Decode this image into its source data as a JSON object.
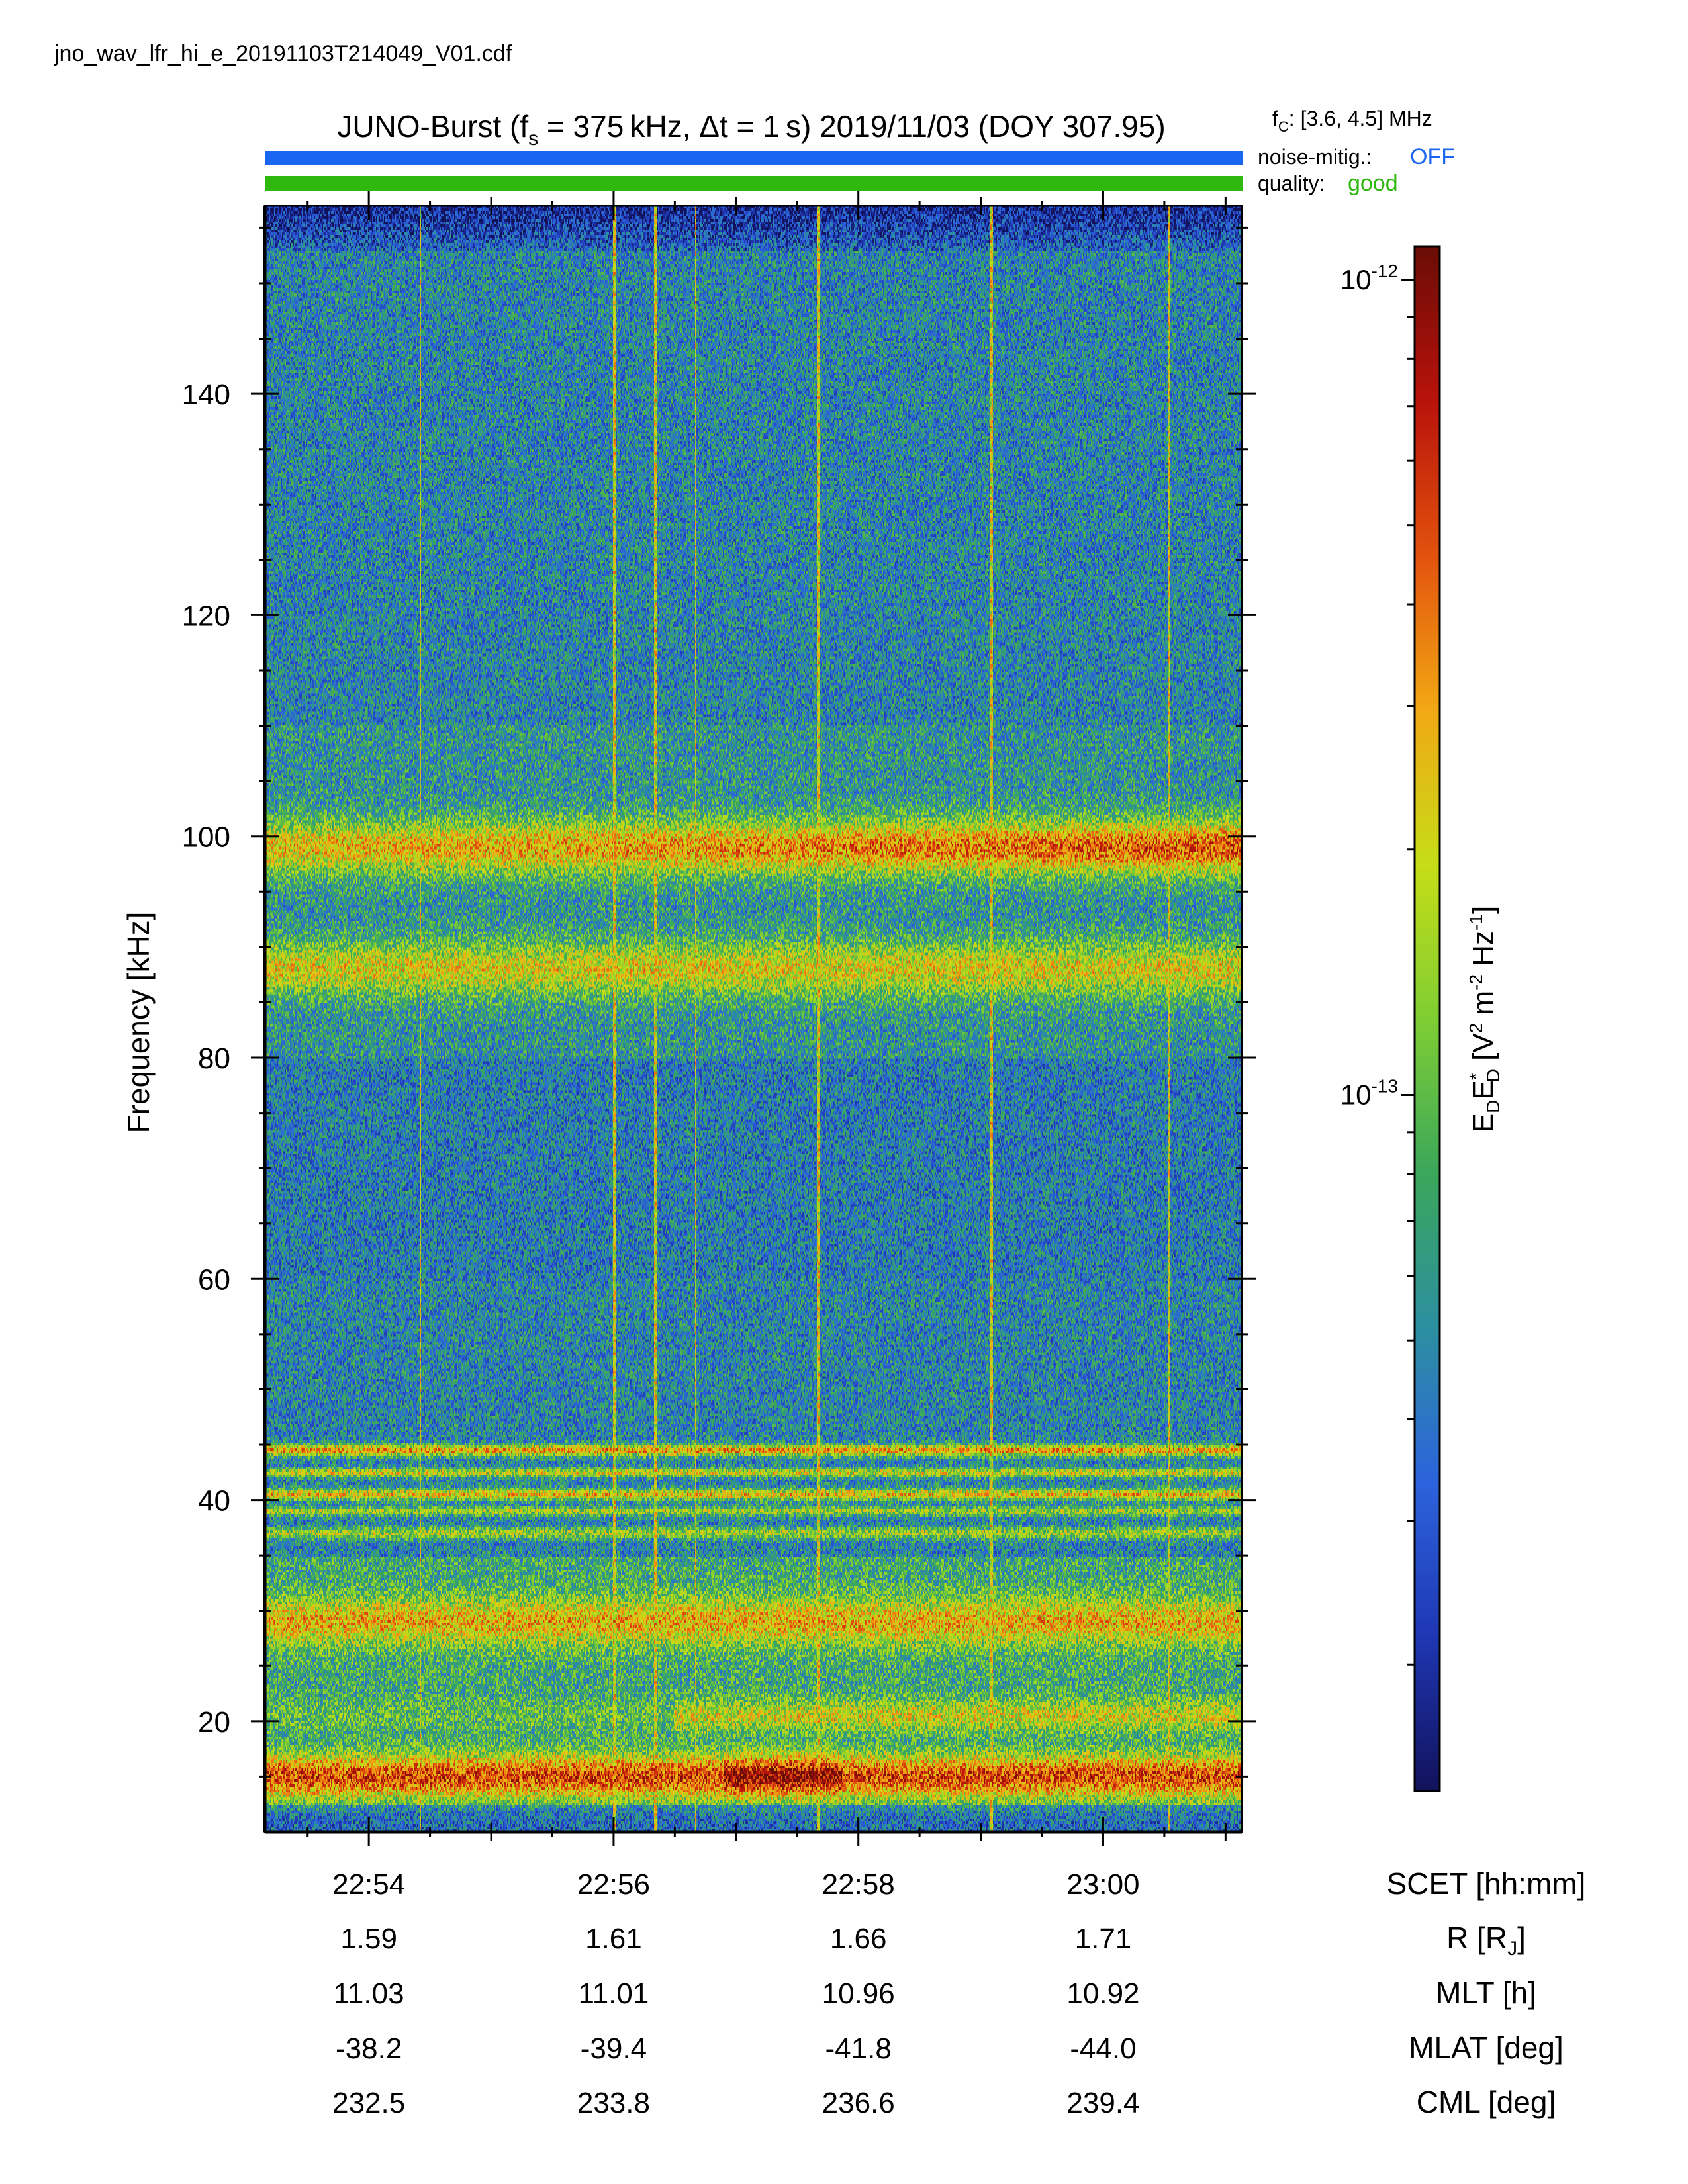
{
  "file_name": "jno_wav_lfr_hi_e_20191103T214049_V01.cdf",
  "header": {
    "title_prefix": "JUNO-Burst (f",
    "title_sub": "s",
    "title_mid": " = 375 kHz, Δt = 1 s)  2019/11/03 (DOY 307.95)",
    "fc_label": "f",
    "fc_sub": "C",
    "fc_value": ": [3.6, 4.5] MHz",
    "noise_label": "noise-mitig.:",
    "noise_value": "OFF",
    "noise_color": "#1a66f0",
    "quality_label": "quality:",
    "quality_value": "good",
    "quality_color": "#2fb80f"
  },
  "chart_data": {
    "type": "heatmap",
    "title": "JUNO-Burst (fs = 375 kHz, Δt = 1 s)  2019/11/03 (DOY 307.95)",
    "ylabel": "Frequency [kHz]",
    "ylim": [
      10,
      157
    ],
    "yticks": [
      20,
      40,
      60,
      80,
      100,
      120,
      140
    ],
    "xlabel": "SCET [hh:mm]",
    "x_time_range": [
      "22:53:09",
      "23:01:08"
    ],
    "xticks": [
      "22:54",
      "22:56",
      "22:58",
      "23:00"
    ],
    "colorbar": {
      "label_main": "E",
      "label": "E_D E_D* [V² m⁻² Hz⁻¹]",
      "scale": "log",
      "range": [
        1.4e-14,
        1.1e-12
      ],
      "ticks": [
        {
          "value": 1e-12,
          "mantissa": "10",
          "exponent": "-12"
        },
        {
          "value": 1e-13,
          "mantissa": "10",
          "exponent": "-13"
        }
      ],
      "colormap": [
        "#11125a",
        "#1f37b4",
        "#2c63dc",
        "#2c8fa0",
        "#3aa75a",
        "#7fce32",
        "#c6dd17",
        "#f1a814",
        "#e2520d",
        "#b8130b",
        "#6a0c06"
      ]
    },
    "features": {
      "bands_khz": [
        {
          "center": 99,
          "half_width": 2.5,
          "peak_level": 0.76
        },
        {
          "center": 88,
          "half_width": 2.5,
          "peak_level": 0.62
        },
        {
          "center": 44.5,
          "half_width": 0.5,
          "peak_level": 0.72
        },
        {
          "center": 42.5,
          "half_width": 0.4,
          "peak_level": 0.6
        },
        {
          "center": 40.5,
          "half_width": 0.5,
          "peak_level": 0.66
        },
        {
          "center": 39,
          "half_width": 0.4,
          "peak_level": 0.55
        },
        {
          "center": 37,
          "half_width": 0.5,
          "peak_level": 0.55
        },
        {
          "center": 29,
          "half_width": 2.2,
          "peak_level": 0.68
        },
        {
          "center": 20.5,
          "half_width": 1.5,
          "peak_level": 0.6
        },
        {
          "center": 15,
          "half_width": 2,
          "peak_level": 0.82
        }
      ],
      "vertical_lines_scet": [
        "22:54:25",
        "22:56:00",
        "22:56:20",
        "22:56:40",
        "22:57:40",
        "22:59:05",
        "23:00:32"
      ]
    },
    "ephemeris": {
      "rows": [
        {
          "label": "SCET [hh:mm]",
          "values": [
            "22:54",
            "22:56",
            "22:58",
            "23:00"
          ]
        },
        {
          "label_main": "R [R",
          "label_sub": "J",
          "label_end": "]",
          "values": [
            "1.59",
            "1.61",
            "1.66",
            "1.71"
          ]
        },
        {
          "label": "MLT [h]",
          "values": [
            "11.03",
            "11.01",
            "10.96",
            "10.92"
          ]
        },
        {
          "label": "MLAT [deg]",
          "values": [
            "-38.2",
            "-39.4",
            "-41.8",
            "-44.0"
          ]
        },
        {
          "label": "CML [deg]",
          "values": [
            "232.5",
            "233.8",
            "236.6",
            "239.4"
          ]
        }
      ]
    }
  }
}
